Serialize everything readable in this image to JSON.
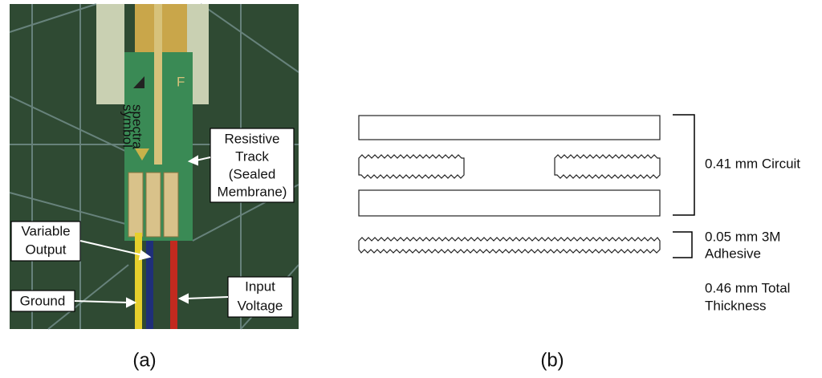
{
  "photo": {
    "brand_line1": "spectra",
    "brand_line2": "symbol",
    "mark": "F",
    "labels": {
      "resistive_track": [
        "Resistive",
        "Track",
        "(Sealed",
        "Membrane)"
      ],
      "variable_output": [
        "Variable",
        "Output"
      ],
      "ground": "Ground",
      "input_voltage": [
        "Input",
        "Voltage"
      ]
    },
    "caption": "(a)"
  },
  "layers": {
    "circuit": "0.41 mm Circuit",
    "adhesive": [
      "0.05 mm 3M",
      "Adhesive"
    ],
    "total": [
      "0.46 mm Total",
      "Thickness"
    ],
    "caption": "(b)"
  }
}
